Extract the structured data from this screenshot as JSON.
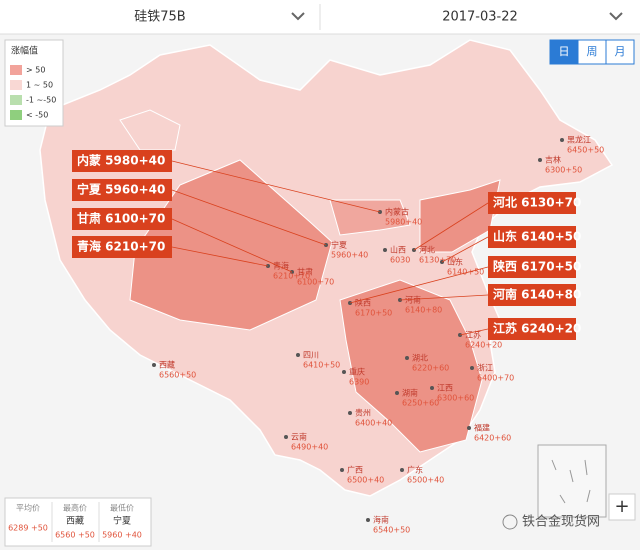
{
  "header": {
    "product": "硅铁75B",
    "date": "2017-03-22"
  },
  "tabs": [
    "日",
    "周",
    "月"
  ],
  "legend": {
    "title": "涨幅值",
    "items": [
      {
        "label": "> 50",
        "color": "#f2a39b"
      },
      {
        "label": "1 ~ 50",
        "color": "#f9d8d4"
      },
      {
        "label": "-1 ~-50",
        "color": "#b9dfae"
      },
      {
        "label": "< -50",
        "color": "#8fcf7e"
      }
    ]
  },
  "callouts": [
    "内蒙 5980+40",
    "宁夏 5960+40",
    "甘肃 6100+70",
    "青海 6210+70",
    "河北 6130+70",
    "山东 6140+50",
    "陕西 6170+50",
    "河南 6140+80",
    "江苏 6240+20"
  ],
  "provinces": [
    {
      "name": "黑龙江",
      "value": "6450+50"
    },
    {
      "name": "吉林",
      "value": "6300+50"
    },
    {
      "name": "内蒙古",
      "value": "5980+40"
    },
    {
      "name": "宁夏",
      "value": "5960+40"
    },
    {
      "name": "甘肃",
      "value": "6100+70"
    },
    {
      "name": "青海",
      "value": "6210+70"
    },
    {
      "name": "山西",
      "value": "6030"
    },
    {
      "name": "河北",
      "value": "6130+70"
    },
    {
      "name": "山东",
      "value": "6140+50"
    },
    {
      "name": "陕西",
      "value": "6170+50"
    },
    {
      "name": "河南",
      "value": "6140+80"
    },
    {
      "name": "江苏",
      "value": "6240+20"
    },
    {
      "name": "四川",
      "value": "6410+50"
    },
    {
      "name": "重庆",
      "value": "6390"
    },
    {
      "name": "湖北",
      "value": "6220+60"
    },
    {
      "name": "湖南",
      "value": "6250+60"
    },
    {
      "name": "江西",
      "value": "6300+60"
    },
    {
      "name": "浙江",
      "value": "6400+70"
    },
    {
      "name": "福建",
      "value": "6420+60"
    },
    {
      "name": "贵州",
      "value": "6400+40"
    },
    {
      "name": "云南",
      "value": "6490+40"
    },
    {
      "name": "广西",
      "value": "6500+40"
    },
    {
      "name": "广东",
      "value": "6500+40"
    },
    {
      "name": "海南",
      "value": "6540+50"
    },
    {
      "name": "西藏",
      "value": "6560+50"
    }
  ],
  "stats": [
    {
      "label": "平均价",
      "value": "6289 +50"
    },
    {
      "label": "最高价",
      "region": "西藏",
      "value": "6560 +50"
    },
    {
      "label": "最低价",
      "region": "宁夏",
      "value": "5960 +40"
    }
  ],
  "zoom": "+",
  "watermark": "铁合金现货网"
}
